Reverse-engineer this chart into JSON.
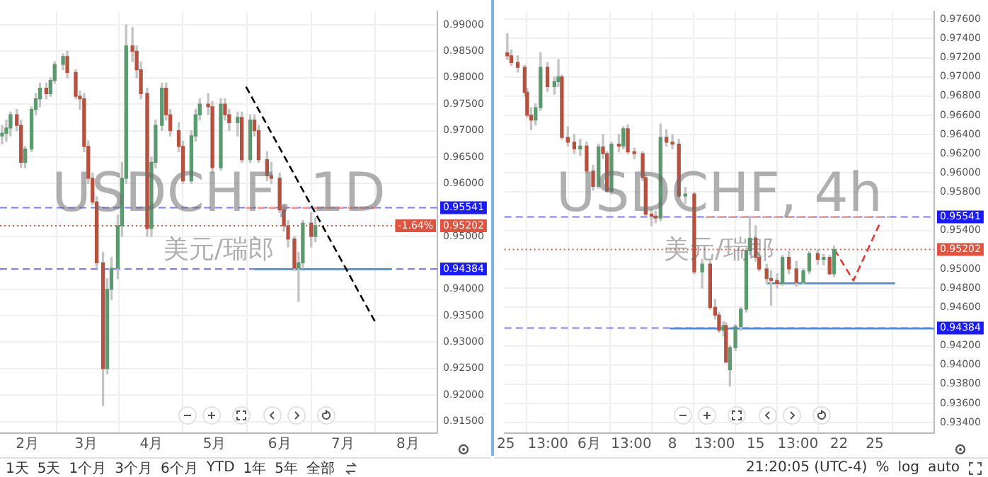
{
  "chart_data": [
    {
      "type": "candlestick",
      "title": "USDCHF, 1D",
      "subtitle": "美元/瑞郎",
      "x": [
        "--01-20",
        "--01-22",
        "--01-24",
        "--01-27",
        "--01-29",
        "--01-31",
        "--02-03",
        "--02-05",
        "--02-07",
        "--02-10",
        "--02-12",
        "--02-14",
        "--02-18",
        "--02-20",
        "--02-24",
        "--02-26",
        "--02-28",
        "--03-02",
        "--03-04",
        "--03-06",
        "--03-09",
        "--03-11",
        "--03-13",
        "--03-16",
        "--03-18",
        "--03-20",
        "--03-23",
        "--03-25",
        "--03-27",
        "--03-30",
        "--04-01",
        "--04-03",
        "--04-06",
        "--04-08",
        "--04-10",
        "--04-14",
        "--04-16",
        "--04-20",
        "--04-22",
        "--04-24",
        "--04-28",
        "--04-30",
        "--05-04",
        "--05-06",
        "--05-08",
        "--05-12",
        "--05-14",
        "--05-18",
        "--05-20",
        "--05-22",
        "--05-26",
        "--05-28",
        "--06-01",
        "--06-03",
        "--06-05",
        "--06-08",
        "--06-10",
        "--06-12",
        "--06-16",
        "--06-18"
      ],
      "ohlc": [
        [
          0.969,
          0.971,
          0.9675,
          0.9695
        ],
        [
          0.9695,
          0.972,
          0.968,
          0.9705
        ],
        [
          0.9705,
          0.9735,
          0.969,
          0.973
        ],
        [
          0.973,
          0.974,
          0.97,
          0.971
        ],
        [
          0.971,
          0.972,
          0.963,
          0.964
        ],
        [
          0.964,
          0.967,
          0.963,
          0.9665
        ],
        [
          0.9665,
          0.9745,
          0.966,
          0.974
        ],
        [
          0.974,
          0.977,
          0.973,
          0.976
        ],
        [
          0.976,
          0.979,
          0.9745,
          0.978
        ],
        [
          0.978,
          0.979,
          0.976,
          0.977
        ],
        [
          0.977,
          0.98,
          0.9765,
          0.9795
        ],
        [
          0.9795,
          0.983,
          0.979,
          0.9825
        ],
        [
          0.9825,
          0.9845,
          0.9815,
          0.984
        ],
        [
          0.984,
          0.985,
          0.98,
          0.981
        ],
        [
          0.981,
          0.9815,
          0.976,
          0.9765
        ],
        [
          0.9765,
          0.9775,
          0.974,
          0.976
        ],
        [
          0.976,
          0.977,
          0.966,
          0.967
        ],
        [
          0.967,
          0.968,
          0.96,
          0.961
        ],
        [
          0.961,
          0.962,
          0.956,
          0.9565
        ],
        [
          0.9565,
          0.9575,
          0.944,
          0.945
        ],
        [
          0.945,
          0.947,
          0.918,
          0.925
        ],
        [
          0.925,
          0.942,
          0.924,
          0.94
        ],
        [
          0.94,
          0.946,
          0.938,
          0.944
        ],
        [
          0.944,
          0.954,
          0.942,
          0.952
        ],
        [
          0.952,
          0.964,
          0.95,
          0.961
        ],
        [
          0.961,
          0.99,
          0.96,
          0.986
        ],
        [
          0.986,
          0.9895,
          0.983,
          0.985
        ],
        [
          0.985,
          0.986,
          0.98,
          0.9815
        ],
        [
          0.9815,
          0.983,
          0.976,
          0.977
        ],
        [
          0.977,
          0.978,
          0.95,
          0.9515
        ],
        [
          0.9515,
          0.965,
          0.95,
          0.964
        ],
        [
          0.964,
          0.972,
          0.963,
          0.971
        ],
        [
          0.971,
          0.979,
          0.97,
          0.978
        ],
        [
          0.978,
          0.979,
          0.972,
          0.973
        ],
        [
          0.973,
          0.974,
          0.969,
          0.97
        ],
        [
          0.97,
          0.9715,
          0.966,
          0.967
        ],
        [
          0.967,
          0.968,
          0.96,
          0.9605
        ],
        [
          0.9605,
          0.97,
          0.96,
          0.969
        ],
        [
          0.969,
          0.974,
          0.968,
          0.973
        ],
        [
          0.973,
          0.976,
          0.972,
          0.975
        ],
        [
          0.975,
          0.977,
          0.973,
          0.9745
        ],
        [
          0.9745,
          0.9755,
          0.962,
          0.963
        ],
        [
          0.963,
          0.976,
          0.9625,
          0.975
        ],
        [
          0.975,
          0.976,
          0.972,
          0.973
        ],
        [
          0.973,
          0.974,
          0.97,
          0.9715
        ],
        [
          0.9715,
          0.9735,
          0.969,
          0.9725
        ],
        [
          0.9725,
          0.9735,
          0.964,
          0.9645
        ],
        [
          0.9645,
          0.973,
          0.964,
          0.972
        ],
        [
          0.972,
          0.973,
          0.969,
          0.97
        ],
        [
          0.97,
          0.971,
          0.964,
          0.9645
        ],
        [
          0.9645,
          0.966,
          0.9605,
          0.9615
        ],
        [
          0.9615,
          0.964,
          0.96,
          0.961
        ],
        [
          0.961,
          0.962,
          0.9545,
          0.955
        ],
        [
          0.955,
          0.956,
          0.951,
          0.952
        ],
        [
          0.952,
          0.953,
          0.948,
          0.9495
        ],
        [
          0.9495,
          0.95,
          0.9435,
          0.944
        ],
        [
          0.944,
          0.947,
          0.9377,
          0.945
        ],
        [
          0.945,
          0.953,
          0.944,
          0.9525
        ],
        [
          0.9525,
          0.9545,
          0.948,
          0.95
        ],
        [
          0.95,
          0.9535,
          0.949,
          0.95202
        ]
      ],
      "series": [
        {
          "type": "line",
          "x": [
            "--05-16",
            "--07-17"
          ],
          "values": [
            0.9783,
            0.9334
          ],
          "color": "#000000",
          "line_style": "dashed"
        },
        {
          "type": "line",
          "x": [
            "--05-16",
            "--07-17"
          ],
          "values": [
            0.9554,
            0.9554
          ],
          "color": "#ef9a9a",
          "line_style": "dashed"
        },
        {
          "type": "line",
          "x": [
            "--05-20",
            "--07-24"
          ],
          "values": [
            0.9438,
            0.9438
          ],
          "color": "#4a90d9",
          "line_style": "solid"
        }
      ],
      "ref_lines": [
        {
          "axis": "y",
          "value": 0.95541,
          "label": "0.95541",
          "color": "#7b7bff",
          "line_style": "dashed"
        },
        {
          "axis": "y",
          "value": 0.94384,
          "label": "0.94384",
          "color": "#7b7bff",
          "line_style": "dashed"
        },
        {
          "axis": "y",
          "value": 0.95202,
          "label": "0.95202",
          "color": "#e0533f",
          "line_style": "dotted"
        }
      ],
      "annotations": [
        {
          "text": "-1.64%",
          "y": 0.95202
        },
        "1天",
        "5天",
        "1个月",
        "3个月",
        "6个月",
        "YTD",
        "1年",
        "5年",
        "全部"
      ],
      "xlim": [
        "--01-19",
        "--08-15"
      ],
      "xticks": [
        {
          "value": "--02-01",
          "label": "2月"
        },
        {
          "value": "--03-01",
          "label": "3月"
        },
        {
          "value": "--04-01",
          "label": "4月"
        },
        {
          "value": "--05-01",
          "label": "5月"
        },
        {
          "value": "--06-01",
          "label": "6月"
        },
        {
          "value": "--07-01",
          "label": "7月"
        },
        {
          "value": "--08-01",
          "label": "8月"
        }
      ],
      "ylim": [
        0.9128,
        0.9925
      ],
      "yticks": [
        {
          "value": 0.915,
          "label": "0.91500"
        },
        {
          "value": 0.92,
          "label": "0.92000"
        },
        {
          "value": 0.925,
          "label": "0.92500"
        },
        {
          "value": 0.93,
          "label": "0.93000"
        },
        {
          "value": 0.935,
          "label": "0.93500"
        },
        {
          "value": 0.94,
          "label": "0.94000"
        },
        {
          "value": 0.95,
          "label": "0.95000"
        },
        {
          "value": 0.96,
          "label": "0.96000"
        },
        {
          "value": 0.965,
          "label": "0.96500"
        },
        {
          "value": 0.97,
          "label": "0.97000"
        },
        {
          "value": 0.975,
          "label": "0.97500"
        },
        {
          "value": 0.98,
          "label": "0.98000"
        },
        {
          "value": 0.985,
          "label": "0.98500"
        },
        {
          "value": 0.99,
          "label": "0.99000"
        }
      ],
      "grid": true
    },
    {
      "type": "candlestick",
      "title": "USDCHF, 4h",
      "subtitle": "美元/瑞郎",
      "x": [
        "--05-25T03:00",
        "--05-25T11:00",
        "--05-26T00:00",
        "--05-26T14:00",
        "--05-26T19:00",
        "--05-27T03:00",
        "--05-27T12:00",
        "--05-27T22:00",
        "--05-28T12:00",
        "--05-29T02:00",
        "--05-29T10:00",
        "--05-29T17:00",
        "--05-30T05:00",
        "--05-30T18:00",
        "--05-31T06:00",
        "--05-31T19:00",
        "--06-01T08:00",
        "--06-01T19:00",
        "--06-02T04:00",
        "--06-02T12:00",
        "--06-02T21:00",
        "--06-03T12:00",
        "--06-03T21:00",
        "--06-04T06:00",
        "--06-04T19:00",
        "--06-05T12:00",
        "--06-05T18:00",
        "--06-06T06:00",
        "--06-06T14:00",
        "--06-07T00:00",
        "--06-07T12:00",
        "--06-08T00:00",
        "--06-08T13:00",
        "--06-09T02:00",
        "--06-09T20:00",
        "--06-10T12:00",
        "--06-11T04:00",
        "--06-11T14:00",
        "--06-11T22:00",
        "--06-12T07:00",
        "--06-12T12:00",
        "--06-12T20:00",
        "--06-13T07:00",
        "--06-13T18:00",
        "--06-14T05:00",
        "--06-14T12:00",
        "--06-15T00:00",
        "--06-15T07:00",
        "--06-15T22:00",
        "--06-16T07:00",
        "--06-16T19:00",
        "--06-17T06:00",
        "--06-17T19:00",
        "--06-18T10:00",
        "--06-19T00:00",
        "--06-19T12:00",
        "--06-20T05:00",
        "--06-20T17:00",
        "--06-21T05:00",
        "--06-21T14:00"
      ],
      "ohlc": [
        [
          0.9725,
          0.9745,
          0.9718,
          0.9722
        ],
        [
          0.9722,
          0.9728,
          0.9712,
          0.9715
        ],
        [
          0.9715,
          0.9722,
          0.9705,
          0.971
        ],
        [
          0.971,
          0.9712,
          0.968,
          0.9684
        ],
        [
          0.9684,
          0.9688,
          0.9658,
          0.966
        ],
        [
          0.966,
          0.9668,
          0.9645,
          0.9655
        ],
        [
          0.9655,
          0.9672,
          0.965,
          0.9668
        ],
        [
          0.9668,
          0.9725,
          0.9665,
          0.971
        ],
        [
          0.971,
          0.9715,
          0.9685,
          0.969
        ],
        [
          0.969,
          0.97,
          0.9682,
          0.9695
        ],
        [
          0.9695,
          0.9718,
          0.969,
          0.97
        ],
        [
          0.97,
          0.9702,
          0.9635,
          0.9637
        ],
        [
          0.9637,
          0.9648,
          0.9628,
          0.9632
        ],
        [
          0.9632,
          0.964,
          0.962,
          0.9625
        ],
        [
          0.9625,
          0.9635,
          0.9618,
          0.9628
        ],
        [
          0.9628,
          0.9632,
          0.96,
          0.9602
        ],
        [
          0.9602,
          0.9608,
          0.9582,
          0.9586
        ],
        [
          0.9586,
          0.963,
          0.9584,
          0.9627
        ],
        [
          0.9627,
          0.964,
          0.9615,
          0.962
        ],
        [
          0.962,
          0.9622,
          0.958,
          0.9581
        ],
        [
          0.9581,
          0.9632,
          0.9578,
          0.963
        ],
        [
          0.963,
          0.964,
          0.9622,
          0.9628
        ],
        [
          0.9628,
          0.9648,
          0.9625,
          0.9646
        ],
        [
          0.9646,
          0.965,
          0.962,
          0.9622
        ],
        [
          0.9622,
          0.9626,
          0.9615,
          0.962
        ],
        [
          0.962,
          0.9622,
          0.9592,
          0.9595
        ],
        [
          0.9595,
          0.9598,
          0.9555,
          0.9557
        ],
        [
          0.9557,
          0.9562,
          0.9545,
          0.9555
        ],
        [
          0.9555,
          0.956,
          0.9548,
          0.9553
        ],
        [
          0.9553,
          0.9651,
          0.955,
          0.9637
        ],
        [
          0.9637,
          0.9645,
          0.9628,
          0.9632
        ],
        [
          0.9632,
          0.964,
          0.9625,
          0.963
        ],
        [
          0.963,
          0.9635,
          0.9575,
          0.9576
        ],
        [
          0.9576,
          0.9585,
          0.9568,
          0.9578
        ],
        [
          0.9578,
          0.958,
          0.9495,
          0.9497
        ],
        [
          0.9497,
          0.951,
          0.948,
          0.9505
        ],
        [
          0.9505,
          0.9508,
          0.9458,
          0.946
        ],
        [
          0.946,
          0.9468,
          0.9448,
          0.9452
        ],
        [
          0.9452,
          0.9455,
          0.9434,
          0.9436
        ],
        [
          0.9436,
          0.9445,
          0.943,
          0.9441
        ],
        [
          0.9441,
          0.9444,
          0.9402,
          0.9403
        ],
        [
          0.9395,
          0.942,
          0.9378,
          0.9418
        ],
        [
          0.9418,
          0.9442,
          0.9415,
          0.944
        ],
        [
          0.944,
          0.946,
          0.9436,
          0.9458
        ],
        [
          0.9458,
          0.9522,
          0.9455,
          0.9519
        ],
        [
          0.9519,
          0.9555,
          0.9515,
          0.9532
        ],
        [
          0.9532,
          0.9545,
          0.9508,
          0.9512
        ],
        [
          0.9512,
          0.9518,
          0.9498,
          0.95
        ],
        [
          0.95,
          0.9505,
          0.9485,
          0.949
        ],
        [
          0.949,
          0.9498,
          0.9462,
          0.9488
        ],
        [
          0.9488,
          0.9495,
          0.948,
          0.9485
        ],
        [
          0.9485,
          0.9514,
          0.9483,
          0.9512
        ],
        [
          0.9512,
          0.9518,
          0.9495,
          0.95
        ],
        [
          0.95,
          0.9508,
          0.9482,
          0.9486
        ],
        [
          0.9486,
          0.95,
          0.9484,
          0.9498
        ],
        [
          0.9498,
          0.9518,
          0.9495,
          0.9516
        ],
        [
          0.9516,
          0.952,
          0.9505,
          0.951
        ],
        [
          0.951,
          0.9515,
          0.9504,
          0.9512
        ],
        [
          0.9512,
          0.9514,
          0.9494,
          0.9495
        ],
        [
          0.9495,
          0.9524,
          0.9492,
          0.95202
        ]
      ],
      "series": [
        {
          "type": "line",
          "x": [
            "--06-10T19:00",
            "--06-26T05:00"
          ],
          "values": [
            0.9554,
            0.9554
          ],
          "color": "#ef9a9a",
          "line_style": "dashed"
        },
        {
          "type": "line",
          "x": [
            "--06-15T22:00",
            "--06-26T17:00"
          ],
          "values": [
            0.9485,
            0.9485
          ],
          "color": "#4a90d9",
          "line_style": "solid"
        },
        {
          "type": "line",
          "x": [
            "--06-07T19:00",
            "--06-30T00:00"
          ],
          "values": [
            0.9438,
            0.9438
          ],
          "color": "#4a90d9",
          "line_style": "solid"
        },
        {
          "type": "line",
          "x": [
            "--06-21T15:00",
            "--06-23T05:00",
            "--06-25T09:00"
          ],
          "values": [
            0.952,
            0.9488,
            0.9546
          ],
          "color": "#e53935",
          "line_style": "dashed"
        }
      ],
      "ref_lines": [
        {
          "axis": "y",
          "value": 0.95541,
          "label": "0.95541",
          "color": "#7b7bff",
          "line_style": "dashed"
        },
        {
          "axis": "y",
          "value": 0.94384,
          "label": "0.94384",
          "color": "#7b7bff",
          "line_style": "dashed"
        },
        {
          "axis": "y",
          "value": 0.95202,
          "label": "0.95202",
          "color": "#e0533f",
          "line_style": "dotted"
        }
      ],
      "annotations": [
        "21:20:05 (UTC-4)",
        "%",
        "log",
        "auto"
      ],
      "xlim": [
        "--05-24T21:00",
        "--06-30T00:00"
      ],
      "xticks": [
        {
          "value": "--05-25",
          "label": "25"
        },
        {
          "value": "--05-28T13:00",
          "label": "13:00"
        },
        {
          "value": "--06-01",
          "label": "6月"
        },
        {
          "value": "--06-04T13:00",
          "label": "13:00"
        },
        {
          "value": "--06-08",
          "label": "8"
        },
        {
          "value": "--06-11T13:00",
          "label": "13:00"
        },
        {
          "value": "--06-15",
          "label": "15"
        },
        {
          "value": "--06-18T13:00",
          "label": "13:00"
        },
        {
          "value": "--06-22",
          "label": "22"
        },
        {
          "value": "--06-25",
          "label": "25"
        }
      ],
      "ylim": [
        0.9329,
        0.9768
      ],
      "yticks": [
        {
          "value": 0.934,
          "label": "0.93400"
        },
        {
          "value": 0.936,
          "label": "0.93600"
        },
        {
          "value": 0.938,
          "label": "0.93800"
        },
        {
          "value": 0.94,
          "label": "0.94000"
        },
        {
          "value": 0.942,
          "label": "0.94200"
        },
        {
          "value": 0.946,
          "label": "0.94600"
        },
        {
          "value": 0.948,
          "label": "0.94800"
        },
        {
          "value": 0.95,
          "label": "0.95000"
        },
        {
          "value": 0.954,
          "label": "0.95400"
        },
        {
          "value": 0.958,
          "label": "0.95800"
        },
        {
          "value": 0.96,
          "label": "0.96000"
        },
        {
          "value": 0.962,
          "label": "0.96200"
        },
        {
          "value": 0.964,
          "label": "0.96400"
        },
        {
          "value": 0.966,
          "label": "0.96600"
        },
        {
          "value": 0.968,
          "label": "0.96800"
        },
        {
          "value": 0.97,
          "label": "0.97000"
        },
        {
          "value": 0.972,
          "label": "0.97200"
        },
        {
          "value": 0.974,
          "label": "0.97400"
        },
        {
          "value": 0.976,
          "label": "0.97600"
        }
      ],
      "grid": true
    }
  ]
}
